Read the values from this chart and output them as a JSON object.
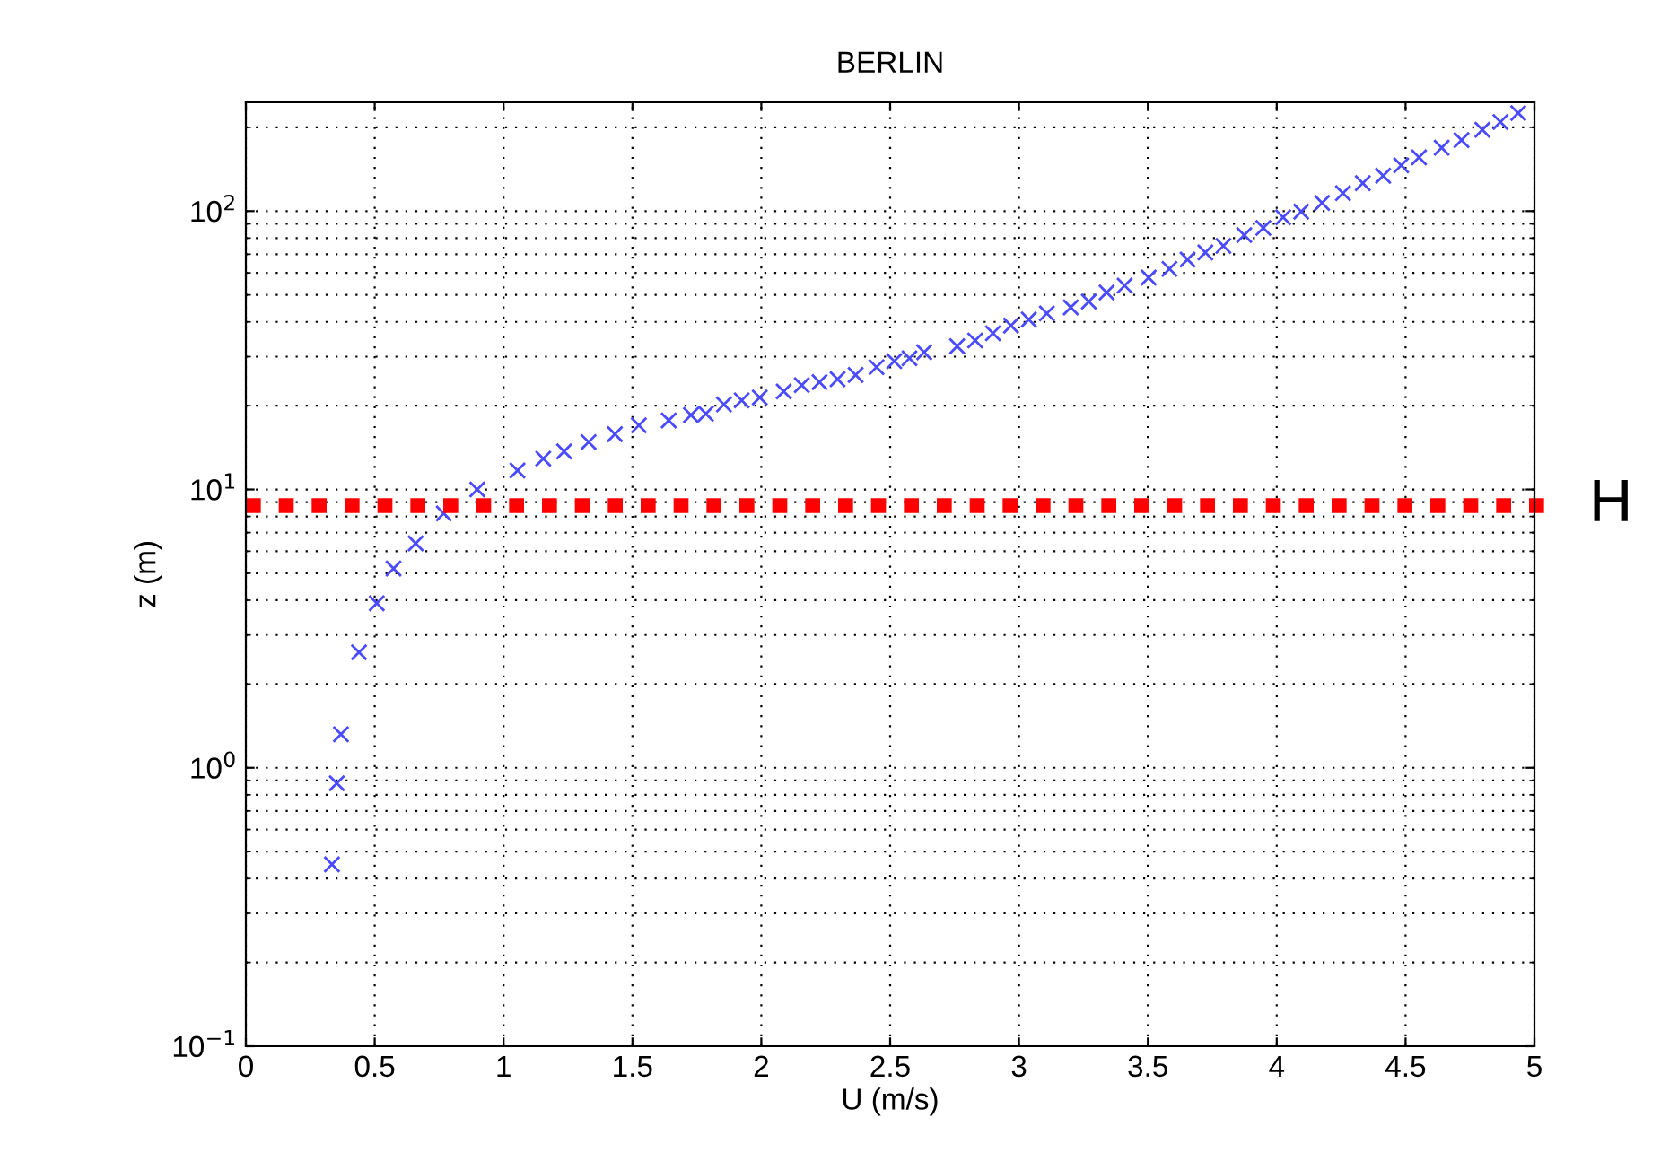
{
  "chart_data": {
    "type": "scatter",
    "title": "BERLIN",
    "xlabel": "U (m/s)",
    "ylabel": "z (m)",
    "log": "y",
    "grid": true,
    "marker": "cross",
    "xlim": [
      0,
      5
    ],
    "xticks": [
      0,
      0.5,
      1,
      1.5,
      2,
      2.5,
      3,
      3.5,
      4,
      4.5,
      5
    ],
    "ylim": [
      0.1,
      246
    ],
    "yticks": [
      {
        "value": 0.1,
        "label": "10$^{−1}$"
      },
      {
        "value": 1,
        "label": "10$^{0}$"
      },
      {
        "value": 10,
        "label": "10$^{1}$"
      },
      {
        "value": 100,
        "label": "10$^{2}$"
      }
    ],
    "ref_lines": [
      {
        "axis": "y",
        "value": 8.75,
        "label": "H",
        "color": "#ff0000",
        "line_style": "dotted"
      }
    ],
    "series": [
      {
        "color": "#4a4aff",
        "x": [
          0.334,
          0.353,
          0.369,
          0.439,
          0.508,
          0.573,
          0.659,
          0.768,
          0.898,
          1.054,
          1.154,
          1.235,
          1.33,
          1.432,
          1.525,
          1.641,
          1.727,
          1.785,
          1.855,
          1.924,
          1.994,
          2.087,
          2.157,
          2.226,
          2.296,
          2.366,
          2.447,
          2.516,
          2.575,
          2.632,
          2.76,
          2.83,
          2.899,
          2.969,
          3.038,
          3.108,
          3.201,
          3.271,
          3.34,
          3.41,
          3.503,
          3.584,
          3.654,
          3.723,
          3.793,
          3.874,
          3.948,
          4.025,
          4.095,
          4.176,
          4.257,
          4.334,
          4.413,
          4.483,
          4.552,
          4.64,
          4.717,
          4.798,
          4.868,
          4.937
        ],
        "values": [
          0.45,
          0.88,
          1.32,
          2.6,
          3.9,
          5.2,
          6.4,
          8.2,
          10.0,
          11.7,
          12.9,
          13.7,
          14.8,
          15.8,
          17.0,
          17.7,
          18.5,
          18.7,
          20.2,
          20.9,
          21.4,
          22.5,
          23.7,
          24.3,
          24.9,
          25.8,
          27.5,
          28.9,
          29.6,
          31.1,
          32.7,
          34.3,
          36.4,
          38.8,
          40.8,
          42.9,
          45.1,
          47.3,
          51,
          54,
          57.7,
          62,
          67,
          71,
          75,
          82,
          87,
          95,
          99.6,
          107,
          116,
          126,
          134,
          146,
          156,
          169,
          180,
          196,
          209,
          225
        ]
      }
    ]
  }
}
